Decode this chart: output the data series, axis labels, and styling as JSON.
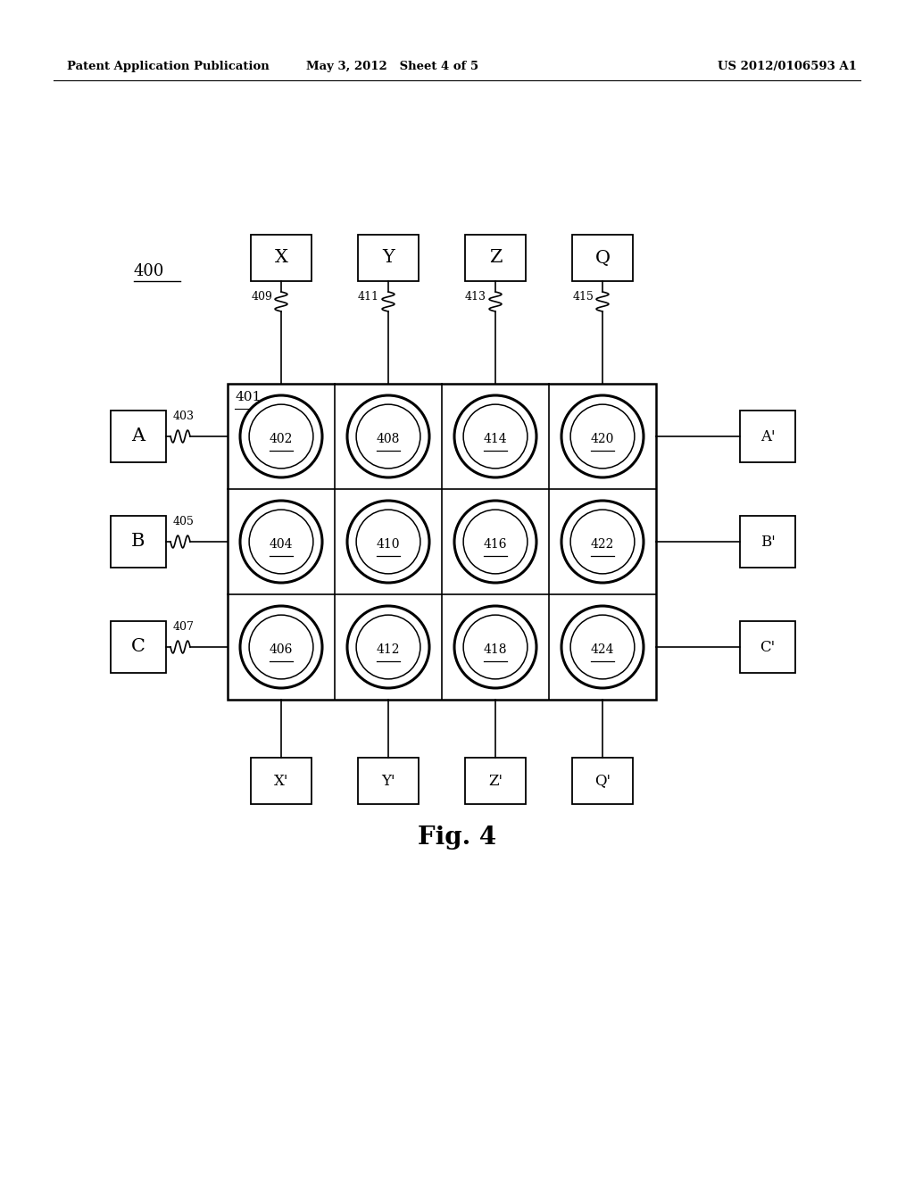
{
  "title_left": "Patent Application Publication",
  "title_mid": "May 3, 2012   Sheet 4 of 5",
  "title_right": "US 2012/0106593 A1",
  "fig_label": "Fig. 4",
  "diagram_label": "400",
  "header_boxes": [
    "X",
    "Y",
    "Z",
    "Q"
  ],
  "footer_boxes": [
    "X'",
    "Y'",
    "Z'",
    "Q'"
  ],
  "left_boxes": [
    "A",
    "B",
    "C"
  ],
  "right_boxes": [
    "A'",
    "B'",
    "C'"
  ],
  "grid_label": "401",
  "col_labels": [
    "409",
    "411",
    "413",
    "415"
  ],
  "row_labels": [
    "403",
    "405",
    "407"
  ],
  "cells": [
    {
      "row": 0,
      "col": 0,
      "label": "402"
    },
    {
      "row": 0,
      "col": 1,
      "label": "408"
    },
    {
      "row": 0,
      "col": 2,
      "label": "414"
    },
    {
      "row": 0,
      "col": 3,
      "label": "420"
    },
    {
      "row": 1,
      "col": 0,
      "label": "404"
    },
    {
      "row": 1,
      "col": 1,
      "label": "410"
    },
    {
      "row": 1,
      "col": 2,
      "label": "416"
    },
    {
      "row": 1,
      "col": 3,
      "label": "422"
    },
    {
      "row": 2,
      "col": 0,
      "label": "406"
    },
    {
      "row": 2,
      "col": 1,
      "label": "412"
    },
    {
      "row": 2,
      "col": 2,
      "label": "418"
    },
    {
      "row": 2,
      "col": 3,
      "label": "424"
    }
  ],
  "bg_color": "#ffffff",
  "line_color": "#000000",
  "text_color": "#000000"
}
